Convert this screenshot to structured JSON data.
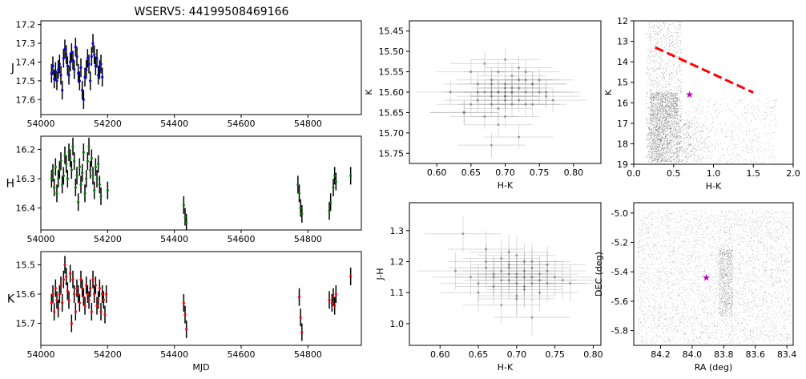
{
  "figure": {
    "title": "WSERV5: 44199508469166"
  },
  "colors": {
    "J": "#0000ff",
    "H": "#008000",
    "K": "#ff0000",
    "err": "#000000",
    "grey": "#888888",
    "star": "#bf00bf",
    "line": "#ff0000"
  },
  "chart_data": [
    {
      "id": "lc_J",
      "type": "scatter",
      "ylabel": "J",
      "xlabel": "",
      "xlim": [
        54000,
        54960
      ],
      "ylim": [
        17.68,
        17.18
      ],
      "y_inverted": true,
      "xticks": [
        54000,
        54200,
        54400,
        54600,
        54800
      ],
      "yticks": [
        17.2,
        17.3,
        17.4,
        17.5,
        17.6
      ],
      "yerr": 0.05,
      "x": [
        54032,
        54036,
        54040,
        54044,
        54048,
        54052,
        54056,
        54060,
        54064,
        54068,
        54072,
        54076,
        54080,
        54084,
        54088,
        54092,
        54096,
        54100,
        54104,
        54108,
        54112,
        54116,
        54120,
        54124,
        54128,
        54132,
        54136,
        54140,
        54144,
        54148,
        54152,
        54156,
        54160,
        54164,
        54168,
        54172,
        54176,
        54180,
        54184
      ],
      "y": [
        17.46,
        17.42,
        17.49,
        17.45,
        17.5,
        17.44,
        17.41,
        17.47,
        17.55,
        17.38,
        17.33,
        17.36,
        17.42,
        17.47,
        17.4,
        17.35,
        17.39,
        17.44,
        17.32,
        17.37,
        17.46,
        17.5,
        17.43,
        17.55,
        17.6,
        17.48,
        17.44,
        17.38,
        17.41,
        17.5,
        17.37,
        17.3,
        17.36,
        17.42,
        17.38,
        17.47,
        17.44,
        17.41,
        17.48
      ]
    },
    {
      "id": "lc_H",
      "type": "scatter",
      "ylabel": "H",
      "xlabel": "",
      "xlim": [
        54000,
        54960
      ],
      "ylim": [
        16.475,
        16.155
      ],
      "y_inverted": true,
      "xticks": [
        54000,
        54200,
        54400,
        54600,
        54800
      ],
      "yticks": [
        16.2,
        16.3,
        16.4
      ],
      "yerr": 0.03,
      "x": [
        54032,
        54036,
        54040,
        54044,
        54048,
        54052,
        54056,
        54060,
        54064,
        54068,
        54072,
        54076,
        54080,
        54084,
        54088,
        54092,
        54096,
        54100,
        54104,
        54108,
        54112,
        54116,
        54120,
        54124,
        54128,
        54132,
        54136,
        54140,
        54144,
        54148,
        54152,
        54156,
        54160,
        54164,
        54168,
        54172,
        54176,
        54180,
        54200,
        54428,
        54432,
        54436,
        54770,
        54774,
        54778,
        54782,
        54864,
        54868,
        54876,
        54880,
        54884,
        54928
      ],
      "y": [
        16.3,
        16.28,
        16.33,
        16.26,
        16.35,
        16.3,
        16.27,
        16.24,
        16.32,
        16.29,
        16.22,
        16.25,
        16.3,
        16.21,
        16.23,
        16.27,
        16.19,
        16.24,
        16.33,
        16.29,
        16.38,
        16.26,
        16.32,
        16.28,
        16.21,
        16.35,
        16.3,
        16.24,
        16.19,
        16.27,
        16.23,
        16.29,
        16.34,
        16.26,
        16.3,
        16.25,
        16.32,
        16.36,
        16.34,
        16.39,
        16.43,
        16.45,
        16.32,
        16.35,
        16.4,
        16.42,
        16.41,
        16.38,
        16.33,
        16.29,
        16.31,
        16.29
      ]
    },
    {
      "id": "lc_K",
      "type": "scatter",
      "ylabel": "K",
      "xlabel": "MJD",
      "xlim": [
        54000,
        54960
      ],
      "ylim": [
        15.775,
        15.455
      ],
      "y_inverted": true,
      "xticks": [
        54000,
        54200,
        54400,
        54600,
        54800
      ],
      "yticks": [
        15.5,
        15.6,
        15.7
      ],
      "yerr": 0.03,
      "x": [
        54032,
        54036,
        54040,
        54044,
        54048,
        54052,
        54056,
        54060,
        54064,
        54068,
        54072,
        54076,
        54080,
        54084,
        54088,
        54092,
        54096,
        54100,
        54104,
        54108,
        54112,
        54116,
        54120,
        54124,
        54128,
        54132,
        54136,
        54140,
        54144,
        54148,
        54152,
        54156,
        54160,
        54164,
        54168,
        54172,
        54176,
        54180,
        54184,
        54188,
        54192,
        54196,
        54428,
        54432,
        54436,
        54774,
        54778,
        54782,
        54864,
        54872,
        54876,
        54880,
        54884,
        54928
      ],
      "y": [
        15.63,
        15.6,
        15.66,
        15.58,
        15.62,
        15.65,
        15.6,
        15.57,
        15.63,
        15.55,
        15.5,
        15.54,
        15.59,
        15.62,
        15.53,
        15.7,
        15.55,
        15.6,
        15.66,
        15.58,
        15.6,
        15.63,
        15.55,
        15.58,
        15.61,
        15.64,
        15.57,
        15.6,
        15.62,
        15.58,
        15.66,
        15.55,
        15.6,
        15.57,
        15.64,
        15.62,
        15.58,
        15.66,
        15.6,
        15.62,
        15.67,
        15.6,
        15.63,
        15.67,
        15.72,
        15.61,
        15.68,
        15.73,
        15.62,
        15.63,
        15.61,
        15.64,
        15.6,
        15.54
      ]
    },
    {
      "id": "cc_KHK",
      "type": "scatter",
      "xlabel": "H-K",
      "ylabel": "K",
      "xlim": [
        0.56,
        0.84
      ],
      "ylim": [
        15.775,
        15.425
      ],
      "y_inverted": true,
      "xticks": [
        0.6,
        0.65,
        0.7,
        0.75,
        0.8
      ],
      "yticks": [
        15.45,
        15.5,
        15.55,
        15.6,
        15.65,
        15.7,
        15.75
      ],
      "xerr": 0.05,
      "yerr": 0.03,
      "x": [
        0.62,
        0.64,
        0.65,
        0.66,
        0.66,
        0.67,
        0.67,
        0.68,
        0.68,
        0.68,
        0.69,
        0.69,
        0.69,
        0.7,
        0.7,
        0.7,
        0.7,
        0.71,
        0.71,
        0.71,
        0.72,
        0.72,
        0.72,
        0.73,
        0.73,
        0.74,
        0.74,
        0.75,
        0.76,
        0.77,
        0.68,
        0.69,
        0.7,
        0.71,
        0.72,
        0.66,
        0.7,
        0.73,
        0.75,
        0.68,
        0.74,
        0.64,
        0.71,
        0.69,
        0.72,
        0.67,
        0.7,
        0.76,
        0.65,
        0.68,
        0.7,
        0.73
      ],
      "y": [
        15.6,
        15.65,
        15.55,
        15.62,
        15.58,
        15.53,
        15.66,
        15.57,
        15.6,
        15.63,
        15.55,
        15.6,
        15.64,
        15.52,
        15.58,
        15.61,
        15.66,
        15.56,
        15.6,
        15.63,
        15.54,
        15.59,
        15.62,
        15.57,
        15.6,
        15.58,
        15.63,
        15.6,
        15.61,
        15.62,
        15.73,
        15.68,
        15.62,
        15.59,
        15.71,
        15.6,
        15.6,
        15.55,
        15.57,
        15.61,
        15.58,
        15.65,
        15.6,
        15.6,
        15.57,
        15.6,
        15.59,
        15.6,
        15.63,
        15.58,
        15.61,
        15.63
      ]
    },
    {
      "id": "cc_JH",
      "type": "scatter",
      "xlabel": "H-K",
      "ylabel": "J-H",
      "xlim": [
        0.56,
        0.81
      ],
      "ylim": [
        0.93,
        1.39
      ],
      "xticks": [
        0.6,
        0.65,
        0.7,
        0.75,
        0.8
      ],
      "yticks": [
        1.0,
        1.1,
        1.2,
        1.3
      ],
      "xerr": 0.05,
      "yerr": 0.06,
      "x": [
        0.62,
        0.63,
        0.64,
        0.65,
        0.66,
        0.66,
        0.67,
        0.67,
        0.68,
        0.68,
        0.69,
        0.69,
        0.69,
        0.7,
        0.7,
        0.7,
        0.71,
        0.71,
        0.71,
        0.72,
        0.72,
        0.72,
        0.73,
        0.73,
        0.74,
        0.74,
        0.75,
        0.76,
        0.77,
        0.68,
        0.7,
        0.72,
        0.65,
        0.69,
        0.71,
        0.74,
        0.67,
        0.7,
        0.73,
        0.66,
        0.69,
        0.72,
        0.7,
        0.68,
        0.71
      ],
      "y": [
        1.17,
        1.29,
        1.15,
        1.13,
        1.18,
        1.2,
        1.15,
        1.12,
        1.17,
        1.21,
        1.14,
        1.16,
        1.19,
        1.13,
        1.16,
        1.22,
        1.15,
        1.17,
        1.12,
        1.15,
        1.18,
        1.2,
        1.14,
        1.16,
        1.13,
        1.17,
        1.15,
        1.14,
        1.13,
        1.06,
        1.09,
        1.02,
        1.1,
        1.23,
        1.11,
        1.19,
        1.16,
        1.15,
        1.1,
        1.24,
        1.18,
        1.13,
        1.08,
        1.14,
        1.2
      ]
    },
    {
      "id": "cmd",
      "type": "scatter",
      "xlabel": "H-K",
      "ylabel": "K",
      "xlim": [
        0,
        2
      ],
      "ylim": [
        19,
        12
      ],
      "y_inverted": true,
      "xticks": [
        0.0,
        0.5,
        1.0,
        1.5,
        2.0
      ],
      "yticks": [
        12,
        13,
        14,
        15,
        16,
        17,
        18,
        19
      ],
      "target": {
        "x": 0.7,
        "y": 15.6
      },
      "line": {
        "x": [
          0.27,
          1.5
        ],
        "y": [
          13.3,
          15.5
        ]
      }
    },
    {
      "id": "sky",
      "type": "scatter",
      "xlabel": "RA (deg)",
      "ylabel": "DEC (deg)",
      "xlim": [
        84.37,
        83.36
      ],
      "ylim": [
        -5.9,
        -4.93
      ],
      "x_inverted": true,
      "xticks": [
        84.2,
        84.0,
        83.8,
        83.6,
        83.4
      ],
      "yticks": [
        -5.8,
        -5.6,
        -5.4,
        -5.2,
        -5.0
      ],
      "target": {
        "x": 83.91,
        "y": -5.44
      }
    }
  ]
}
